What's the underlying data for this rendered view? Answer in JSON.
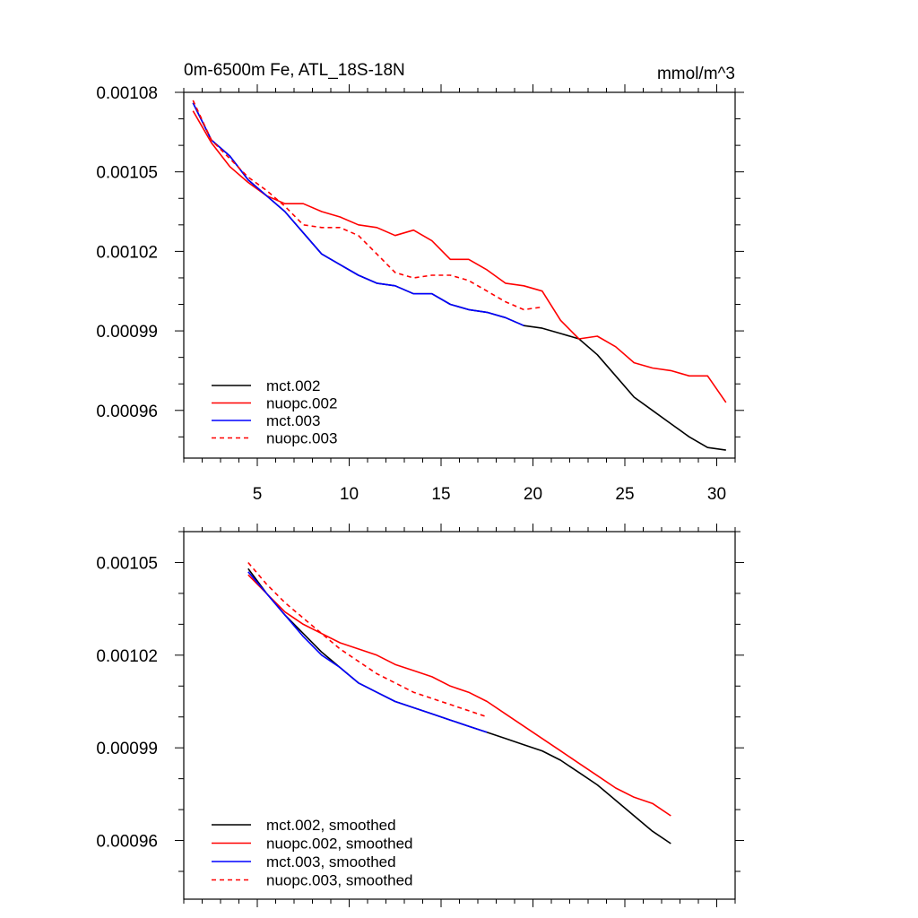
{
  "chart_data": [
    {
      "type": "line",
      "title": "0m-6500m Fe, ATL_18S-18N",
      "units": "mmol/m^3",
      "xlim": [
        1,
        31
      ],
      "ylim": [
        0.000942,
        0.00108
      ],
      "x_ticks": [
        5,
        10,
        15,
        20,
        25,
        30
      ],
      "x_tick_labels": [
        "5",
        "10",
        "15",
        "20",
        "25",
        "30"
      ],
      "y_ticks": [
        0.00108,
        0.00105,
        0.00102,
        0.00099,
        0.00096
      ],
      "y_tick_labels": [
        "0.00108",
        "0.00105",
        "0.00102",
        "0.00099",
        "0.00096"
      ],
      "legend_position": "bottom-left",
      "series": [
        {
          "name": "mct.002",
          "color": "#000000",
          "dash": "solid",
          "x": [
            1.5,
            2.5,
            3.5,
            4.5,
            5.5,
            6.5,
            7.5,
            8.5,
            9.5,
            10.5,
            11.5,
            12.5,
            13.5,
            14.5,
            15.5,
            16.5,
            17.5,
            18.5,
            19.5,
            20.5,
            21.5,
            22.5,
            23.5,
            24.5,
            25.5,
            26.5,
            27.5,
            28.5,
            29.5,
            30.5
          ],
          "values": [
            0.001076,
            0.001062,
            0.001056,
            0.001047,
            0.001041,
            0.001035,
            0.001027,
            0.001019,
            0.001015,
            0.001011,
            0.001008,
            0.001007,
            0.001004,
            0.001004,
            0.001,
            0.000998,
            0.000997,
            0.000995,
            0.000992,
            0.000991,
            0.000989,
            0.000987,
            0.000981,
            0.000973,
            0.000965,
            0.00096,
            0.000955,
            0.00095,
            0.000946,
            0.000945
          ]
        },
        {
          "name": "nuopc.002",
          "color": "#ff0000",
          "dash": "solid",
          "x": [
            1.5,
            2.5,
            3.5,
            4.5,
            5.5,
            6.5,
            7.5,
            8.5,
            9.5,
            10.5,
            11.5,
            12.5,
            13.5,
            14.5,
            15.5,
            16.5,
            17.5,
            18.5,
            19.5,
            20.5,
            21.5,
            22.5,
            23.5,
            24.5,
            25.5,
            26.5,
            27.5,
            28.5,
            29.5,
            30.5
          ],
          "values": [
            0.001073,
            0.001061,
            0.001052,
            0.001046,
            0.001041,
            0.001038,
            0.001038,
            0.001035,
            0.001033,
            0.00103,
            0.001029,
            0.001026,
            0.001028,
            0.001024,
            0.001017,
            0.001017,
            0.001013,
            0.001008,
            0.001007,
            0.001005,
            0.000994,
            0.000987,
            0.000988,
            0.000984,
            0.000978,
            0.000976,
            0.000975,
            0.000973,
            0.000973,
            0.000963
          ]
        },
        {
          "name": "mct.003",
          "color": "#0000ff",
          "dash": "solid",
          "x": [
            1.5,
            2.5,
            3.5,
            4.5,
            5.5,
            6.5,
            7.5,
            8.5,
            9.5,
            10.5,
            11.5,
            12.5,
            13.5,
            14.5,
            15.5,
            16.5,
            17.5,
            18.5,
            19.5
          ],
          "values": [
            0.001076,
            0.001062,
            0.001056,
            0.001047,
            0.001041,
            0.001035,
            0.001027,
            0.001019,
            0.001015,
            0.001011,
            0.001008,
            0.001007,
            0.001004,
            0.001004,
            0.001,
            0.000998,
            0.000997,
            0.000995,
            0.000992
          ]
        },
        {
          "name": "nuopc.003",
          "color": "#ff0000",
          "dash": "dashed",
          "x": [
            1.5,
            2.5,
            3.5,
            4.5,
            5.5,
            6.5,
            7.5,
            8.5,
            9.5,
            10.5,
            11.5,
            12.5,
            13.5,
            14.5,
            15.5,
            16.5,
            17.5,
            18.5,
            19.5,
            20.5
          ],
          "values": [
            0.001077,
            0.001062,
            0.001055,
            0.001048,
            0.001043,
            0.001037,
            0.00103,
            0.001029,
            0.001029,
            0.001026,
            0.001019,
            0.001012,
            0.00101,
            0.001011,
            0.001011,
            0.001009,
            0.001005,
            0.001001,
            0.000998,
            0.000999
          ]
        }
      ]
    },
    {
      "type": "line",
      "xlim": [
        1,
        31
      ],
      "ylim": [
        0.000941,
        0.00106
      ],
      "x_ticks": [
        5,
        10,
        15,
        20,
        25,
        30
      ],
      "x_tick_labels": [],
      "y_ticks": [
        0.00105,
        0.00102,
        0.00099,
        0.00096
      ],
      "y_tick_labels": [
        "0.00105",
        "0.00102",
        "0.00099",
        "0.00096"
      ],
      "legend_position": "bottom-left",
      "series": [
        {
          "name": "mct.002, smoothed",
          "color": "#000000",
          "dash": "solid",
          "x": [
            4.5,
            5.5,
            6.5,
            7.5,
            8.5,
            9.5,
            10.5,
            11.5,
            12.5,
            13.5,
            14.5,
            15.5,
            16.5,
            17.5,
            18.5,
            19.5,
            20.5,
            21.5,
            22.5,
            23.5,
            24.5,
            25.5,
            26.5,
            27.5
          ],
          "values": [
            0.001048,
            0.00104,
            0.001033,
            0.001027,
            0.001021,
            0.001016,
            0.001011,
            0.001008,
            0.001005,
            0.001003,
            0.001001,
            0.000999,
            0.000997,
            0.000995,
            0.000993,
            0.000991,
            0.000989,
            0.000986,
            0.000982,
            0.000978,
            0.000973,
            0.000968,
            0.000963,
            0.000959
          ]
        },
        {
          "name": "nuopc.002, smoothed",
          "color": "#ff0000",
          "dash": "solid",
          "x": [
            4.5,
            5.5,
            6.5,
            7.5,
            8.5,
            9.5,
            10.5,
            11.5,
            12.5,
            13.5,
            14.5,
            15.5,
            16.5,
            17.5,
            18.5,
            19.5,
            20.5,
            21.5,
            22.5,
            23.5,
            24.5,
            25.5,
            26.5,
            27.5
          ],
          "values": [
            0.001046,
            0.00104,
            0.001034,
            0.00103,
            0.001027,
            0.001024,
            0.001022,
            0.00102,
            0.001017,
            0.001015,
            0.001013,
            0.00101,
            0.001008,
            0.001005,
            0.001001,
            0.000997,
            0.000993,
            0.000989,
            0.000985,
            0.000981,
            0.000977,
            0.000974,
            0.000972,
            0.000968
          ]
        },
        {
          "name": "mct.003, smoothed",
          "color": "#0000ff",
          "dash": "solid",
          "x": [
            4.5,
            5.5,
            6.5,
            7.5,
            8.5,
            9.5,
            10.5,
            11.5,
            12.5,
            13.5,
            14.5,
            15.5,
            16.5,
            17.5
          ],
          "values": [
            0.001047,
            0.00104,
            0.001033,
            0.001026,
            0.00102,
            0.001016,
            0.001011,
            0.001008,
            0.001005,
            0.001003,
            0.001001,
            0.000999,
            0.000997,
            0.000995
          ]
        },
        {
          "name": "nuopc.003, smoothed",
          "color": "#ff0000",
          "dash": "dashed",
          "x": [
            4.5,
            5.5,
            6.5,
            7.5,
            8.5,
            9.5,
            10.5,
            11.5,
            12.5,
            13.5,
            14.5,
            15.5,
            16.5,
            17.5
          ],
          "values": [
            0.00105,
            0.001043,
            0.001037,
            0.001032,
            0.001027,
            0.001022,
            0.001018,
            0.001014,
            0.001011,
            0.001008,
            0.001006,
            0.001004,
            0.001002,
            0.001
          ]
        }
      ]
    }
  ]
}
